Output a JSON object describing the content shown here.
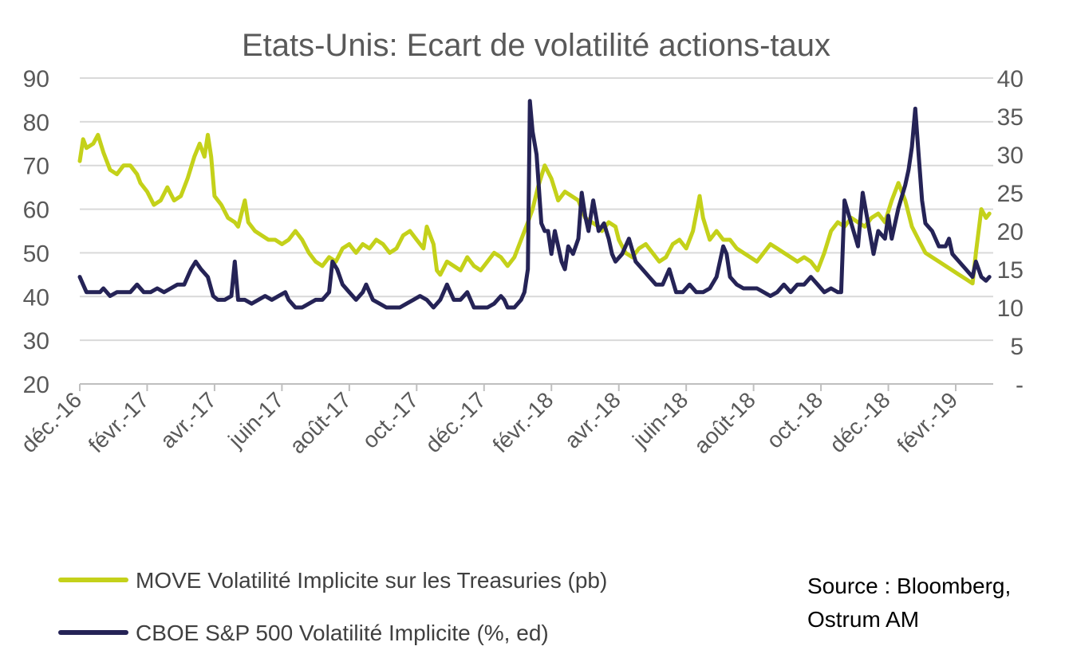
{
  "chart_data": {
    "type": "line",
    "title": "Etats-Unis: Ecart de volatilité actions-taux",
    "x_tick_labels": [
      "déc.-16",
      "févr.-17",
      "avr.-17",
      "juin-17",
      "août-17",
      "oct.-17",
      "déc.-17",
      "févr.-18",
      "avr.-18",
      "juin-18",
      "août-18",
      "oct.-18",
      "déc.-18",
      "févr.-19"
    ],
    "left_axis": {
      "range": [
        20,
        90
      ],
      "ticks": [
        "20",
        "30",
        "40",
        "50",
        "60",
        "70",
        "80",
        "90"
      ]
    },
    "right_axis": {
      "range": [
        0,
        40
      ],
      "ticks": [
        "-",
        "5",
        "10",
        "15",
        "20",
        "25",
        "30",
        "35",
        "40"
      ]
    },
    "series": [
      {
        "name": "MOVE Volatilité Implicite sur les Treasuries (pb)",
        "axis": "left",
        "color": "#c4d11a",
        "points": [
          [
            0,
            71
          ],
          [
            0.05,
            76
          ],
          [
            0.1,
            74
          ],
          [
            0.2,
            75
          ],
          [
            0.27,
            77
          ],
          [
            0.35,
            73
          ],
          [
            0.45,
            69
          ],
          [
            0.55,
            68
          ],
          [
            0.65,
            70
          ],
          [
            0.75,
            70
          ],
          [
            0.85,
            68
          ],
          [
            0.9,
            66
          ],
          [
            1.0,
            64
          ],
          [
            1.1,
            61
          ],
          [
            1.2,
            62
          ],
          [
            1.3,
            65
          ],
          [
            1.4,
            62
          ],
          [
            1.5,
            63
          ],
          [
            1.6,
            67
          ],
          [
            1.7,
            72
          ],
          [
            1.78,
            75
          ],
          [
            1.85,
            72
          ],
          [
            1.9,
            77
          ],
          [
            1.95,
            72
          ],
          [
            2.0,
            63
          ],
          [
            2.1,
            61
          ],
          [
            2.2,
            58
          ],
          [
            2.3,
            57
          ],
          [
            2.35,
            56
          ],
          [
            2.45,
            62
          ],
          [
            2.5,
            57
          ],
          [
            2.6,
            55
          ],
          [
            2.7,
            54
          ],
          [
            2.8,
            53
          ],
          [
            2.9,
            53
          ],
          [
            3.0,
            52
          ],
          [
            3.1,
            53
          ],
          [
            3.2,
            55
          ],
          [
            3.3,
            53
          ],
          [
            3.4,
            50
          ],
          [
            3.5,
            48
          ],
          [
            3.6,
            47
          ],
          [
            3.7,
            49
          ],
          [
            3.8,
            48
          ],
          [
            3.9,
            51
          ],
          [
            4.0,
            52
          ],
          [
            4.1,
            50
          ],
          [
            4.2,
            52
          ],
          [
            4.3,
            51
          ],
          [
            4.4,
            53
          ],
          [
            4.5,
            52
          ],
          [
            4.6,
            50
          ],
          [
            4.7,
            51
          ],
          [
            4.8,
            54
          ],
          [
            4.9,
            55
          ],
          [
            5.0,
            53
          ],
          [
            5.1,
            51
          ],
          [
            5.15,
            56
          ],
          [
            5.25,
            52
          ],
          [
            5.3,
            46
          ],
          [
            5.35,
            45
          ],
          [
            5.45,
            48
          ],
          [
            5.55,
            47
          ],
          [
            5.65,
            46
          ],
          [
            5.75,
            49
          ],
          [
            5.85,
            47
          ],
          [
            5.95,
            46
          ],
          [
            6.05,
            48
          ],
          [
            6.15,
            50
          ],
          [
            6.25,
            49
          ],
          [
            6.35,
            47
          ],
          [
            6.45,
            49
          ],
          [
            6.55,
            53
          ],
          [
            6.65,
            57
          ],
          [
            6.72,
            60
          ],
          [
            6.8,
            65
          ],
          [
            6.9,
            70
          ],
          [
            7.0,
            67
          ],
          [
            7.1,
            62
          ],
          [
            7.2,
            64
          ],
          [
            7.3,
            63
          ],
          [
            7.4,
            62
          ],
          [
            7.5,
            58
          ],
          [
            7.6,
            57
          ],
          [
            7.7,
            56
          ],
          [
            7.75,
            55
          ],
          [
            7.85,
            57
          ],
          [
            7.95,
            56
          ],
          [
            8.0,
            53
          ],
          [
            8.1,
            50
          ],
          [
            8.2,
            49
          ],
          [
            8.3,
            51
          ],
          [
            8.4,
            52
          ],
          [
            8.5,
            50
          ],
          [
            8.6,
            48
          ],
          [
            8.7,
            49
          ],
          [
            8.8,
            52
          ],
          [
            8.9,
            53
          ],
          [
            9.0,
            51
          ],
          [
            9.1,
            55
          ],
          [
            9.2,
            63
          ],
          [
            9.25,
            58
          ],
          [
            9.35,
            53
          ],
          [
            9.45,
            55
          ],
          [
            9.55,
            53
          ],
          [
            9.65,
            53
          ],
          [
            9.75,
            51
          ],
          [
            9.85,
            50
          ],
          [
            9.95,
            49
          ],
          [
            10.05,
            48
          ],
          [
            10.15,
            50
          ],
          [
            10.25,
            52
          ],
          [
            10.35,
            51
          ],
          [
            10.45,
            50
          ],
          [
            10.55,
            49
          ],
          [
            10.65,
            48
          ],
          [
            10.75,
            49
          ],
          [
            10.85,
            48
          ],
          [
            10.95,
            46
          ],
          [
            11.05,
            50
          ],
          [
            11.15,
            55
          ],
          [
            11.25,
            57
          ],
          [
            11.35,
            56
          ],
          [
            11.45,
            58
          ],
          [
            11.55,
            57
          ],
          [
            11.65,
            56
          ],
          [
            11.75,
            58
          ],
          [
            11.85,
            59
          ],
          [
            11.95,
            57
          ],
          [
            12.05,
            62
          ],
          [
            12.15,
            66
          ],
          [
            12.25,
            62
          ],
          [
            12.35,
            56
          ],
          [
            12.45,
            53
          ],
          [
            12.55,
            50
          ],
          [
            12.65,
            49
          ],
          [
            12.75,
            48
          ],
          [
            12.85,
            47
          ],
          [
            12.95,
            46
          ],
          [
            13.05,
            45
          ],
          [
            13.15,
            44
          ],
          [
            13.25,
            43
          ],
          [
            13.3,
            50
          ],
          [
            13.38,
            60
          ],
          [
            13.45,
            58
          ],
          [
            13.5,
            59
          ]
        ]
      },
      {
        "name": "CBOE S&P 500 Volatilité Implicite (%, ed)",
        "axis": "right",
        "color": "#252356",
        "points": [
          [
            0,
            14
          ],
          [
            0.05,
            13
          ],
          [
            0.1,
            12
          ],
          [
            0.2,
            12
          ],
          [
            0.3,
            12
          ],
          [
            0.35,
            12.5
          ],
          [
            0.45,
            11.5
          ],
          [
            0.55,
            12
          ],
          [
            0.65,
            12
          ],
          [
            0.75,
            12
          ],
          [
            0.85,
            13
          ],
          [
            0.95,
            12
          ],
          [
            1.05,
            12
          ],
          [
            1.15,
            12.5
          ],
          [
            1.25,
            12
          ],
          [
            1.35,
            12.5
          ],
          [
            1.45,
            13
          ],
          [
            1.55,
            13
          ],
          [
            1.65,
            15
          ],
          [
            1.72,
            16
          ],
          [
            1.8,
            15
          ],
          [
            1.9,
            14
          ],
          [
            1.98,
            11.5
          ],
          [
            2.05,
            11
          ],
          [
            2.15,
            11
          ],
          [
            2.25,
            11.5
          ],
          [
            2.3,
            16
          ],
          [
            2.35,
            11
          ],
          [
            2.45,
            11
          ],
          [
            2.55,
            10.5
          ],
          [
            2.65,
            11
          ],
          [
            2.75,
            11.5
          ],
          [
            2.85,
            11
          ],
          [
            2.95,
            11.5
          ],
          [
            3.05,
            12
          ],
          [
            3.1,
            11
          ],
          [
            3.2,
            10
          ],
          [
            3.3,
            10
          ],
          [
            3.4,
            10.5
          ],
          [
            3.5,
            11
          ],
          [
            3.6,
            11
          ],
          [
            3.7,
            12
          ],
          [
            3.75,
            16
          ],
          [
            3.82,
            15
          ],
          [
            3.9,
            13
          ],
          [
            4.0,
            12
          ],
          [
            4.1,
            11
          ],
          [
            4.2,
            12
          ],
          [
            4.25,
            13
          ],
          [
            4.35,
            11
          ],
          [
            4.45,
            10.5
          ],
          [
            4.55,
            10
          ],
          [
            4.65,
            10
          ],
          [
            4.75,
            10
          ],
          [
            4.85,
            10.5
          ],
          [
            4.95,
            11
          ],
          [
            5.05,
            11.5
          ],
          [
            5.15,
            11
          ],
          [
            5.25,
            10
          ],
          [
            5.35,
            11
          ],
          [
            5.45,
            13
          ],
          [
            5.55,
            11
          ],
          [
            5.65,
            11
          ],
          [
            5.75,
            12
          ],
          [
            5.85,
            10
          ],
          [
            5.95,
            10
          ],
          [
            6.05,
            10
          ],
          [
            6.15,
            10.5
          ],
          [
            6.25,
            11.5
          ],
          [
            6.3,
            11
          ],
          [
            6.35,
            10
          ],
          [
            6.45,
            10
          ],
          [
            6.55,
            11
          ],
          [
            6.6,
            12
          ],
          [
            6.65,
            15
          ],
          [
            6.68,
            37
          ],
          [
            6.72,
            33
          ],
          [
            6.78,
            30
          ],
          [
            6.85,
            21
          ],
          [
            6.9,
            20
          ],
          [
            6.95,
            20
          ],
          [
            7.0,
            17
          ],
          [
            7.05,
            20
          ],
          [
            7.1,
            18
          ],
          [
            7.15,
            16
          ],
          [
            7.2,
            15
          ],
          [
            7.25,
            18
          ],
          [
            7.32,
            17
          ],
          [
            7.4,
            19
          ],
          [
            7.45,
            25
          ],
          [
            7.5,
            22
          ],
          [
            7.55,
            20
          ],
          [
            7.62,
            24
          ],
          [
            7.7,
            20
          ],
          [
            7.78,
            21
          ],
          [
            7.85,
            19
          ],
          [
            7.9,
            17
          ],
          [
            7.95,
            16
          ],
          [
            8.05,
            17
          ],
          [
            8.15,
            19
          ],
          [
            8.25,
            16
          ],
          [
            8.35,
            15
          ],
          [
            8.45,
            14
          ],
          [
            8.55,
            13
          ],
          [
            8.65,
            13
          ],
          [
            8.75,
            15
          ],
          [
            8.85,
            12
          ],
          [
            8.95,
            12
          ],
          [
            9.05,
            13
          ],
          [
            9.15,
            12
          ],
          [
            9.25,
            12
          ],
          [
            9.35,
            12.5
          ],
          [
            9.45,
            14
          ],
          [
            9.55,
            18
          ],
          [
            9.6,
            17
          ],
          [
            9.65,
            14
          ],
          [
            9.75,
            13
          ],
          [
            9.85,
            12.5
          ],
          [
            9.95,
            12.5
          ],
          [
            10.05,
            12.5
          ],
          [
            10.15,
            12
          ],
          [
            10.25,
            11.5
          ],
          [
            10.35,
            12
          ],
          [
            10.45,
            13
          ],
          [
            10.55,
            12
          ],
          [
            10.65,
            13
          ],
          [
            10.75,
            13
          ],
          [
            10.85,
            14
          ],
          [
            10.95,
            13
          ],
          [
            11.05,
            12
          ],
          [
            11.15,
            12.5
          ],
          [
            11.25,
            12
          ],
          [
            11.3,
            12
          ],
          [
            11.35,
            24
          ],
          [
            11.45,
            21
          ],
          [
            11.55,
            18
          ],
          [
            11.62,
            25
          ],
          [
            11.7,
            21
          ],
          [
            11.78,
            17
          ],
          [
            11.85,
            20
          ],
          [
            11.95,
            19
          ],
          [
            12.0,
            22
          ],
          [
            12.05,
            19
          ],
          [
            12.15,
            23
          ],
          [
            12.25,
            26
          ],
          [
            12.3,
            28
          ],
          [
            12.35,
            31
          ],
          [
            12.4,
            36
          ],
          [
            12.45,
            30
          ],
          [
            12.5,
            24
          ],
          [
            12.55,
            21
          ],
          [
            12.65,
            20
          ],
          [
            12.75,
            18
          ],
          [
            12.85,
            18
          ],
          [
            12.9,
            19
          ],
          [
            12.95,
            17
          ],
          [
            13.05,
            16
          ],
          [
            13.15,
            15
          ],
          [
            13.25,
            14
          ],
          [
            13.3,
            16
          ],
          [
            13.38,
            14
          ],
          [
            13.45,
            13.5
          ],
          [
            13.5,
            14
          ]
        ]
      }
    ],
    "legend": {
      "position": "bottom-left"
    },
    "source": "Source : Bloomberg, Ostrum AM"
  }
}
